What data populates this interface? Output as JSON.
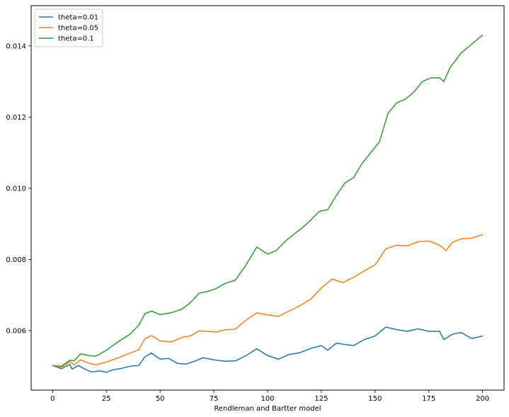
{
  "chart_data": {
    "type": "line",
    "xlabel": "Rendleman and Bartter model",
    "ylabel": "",
    "title": "",
    "xlim": [
      -10,
      210
    ],
    "ylim": [
      0.00433,
      0.01513
    ],
    "xticks": [
      0,
      25,
      50,
      75,
      100,
      125,
      150,
      175,
      200
    ],
    "yticks": [
      0.006,
      0.008,
      0.01,
      0.012,
      0.014
    ],
    "ytick_labels": [
      "0.006",
      "0.008",
      "0.010",
      "0.012",
      "0.014"
    ],
    "grid": false,
    "legend_placement": "top-left",
    "series": [
      {
        "name": "theta=0.01",
        "color": "#1f77b4",
        "points": [
          [
            0,
            0.00502
          ],
          [
            4,
            0.00493
          ],
          [
            8,
            0.00505
          ],
          [
            9,
            0.00492
          ],
          [
            12,
            0.00502
          ],
          [
            15,
            0.00492
          ],
          [
            18,
            0.00484
          ],
          [
            22,
            0.00487
          ],
          [
            25,
            0.00483
          ],
          [
            28,
            0.0049
          ],
          [
            32,
            0.00494
          ],
          [
            36,
            0.005
          ],
          [
            40,
            0.00502
          ],
          [
            43,
            0.00527
          ],
          [
            46,
            0.00537
          ],
          [
            50,
            0.0052
          ],
          [
            54,
            0.00522
          ],
          [
            58,
            0.00508
          ],
          [
            62,
            0.00506
          ],
          [
            66,
            0.00514
          ],
          [
            70,
            0.00524
          ],
          [
            75,
            0.00518
          ],
          [
            80,
            0.00514
          ],
          [
            85,
            0.00515
          ],
          [
            90,
            0.0053
          ],
          [
            95,
            0.00549
          ],
          [
            100,
            0.0053
          ],
          [
            105,
            0.0052
          ],
          [
            110,
            0.00533
          ],
          [
            115,
            0.00538
          ],
          [
            120,
            0.0055
          ],
          [
            125,
            0.00558
          ],
          [
            128,
            0.00545
          ],
          [
            132,
            0.00565
          ],
          [
            136,
            0.00561
          ],
          [
            140,
            0.00558
          ],
          [
            145,
            0.00575
          ],
          [
            150,
            0.00585
          ],
          [
            155,
            0.0061
          ],
          [
            160,
            0.00603
          ],
          [
            165,
            0.00598
          ],
          [
            170,
            0.00605
          ],
          [
            175,
            0.00598
          ],
          [
            180,
            0.00598
          ],
          [
            182,
            0.00575
          ],
          [
            186,
            0.0059
          ],
          [
            190,
            0.00595
          ],
          [
            195,
            0.00578
          ],
          [
            200,
            0.00585
          ]
        ]
      },
      {
        "name": "theta=0.05",
        "color": "#ff7f0e",
        "points": [
          [
            0,
            0.00502
          ],
          [
            4,
            0.00497
          ],
          [
            8,
            0.00513
          ],
          [
            10,
            0.00504
          ],
          [
            13,
            0.00518
          ],
          [
            17,
            0.00508
          ],
          [
            20,
            0.00504
          ],
          [
            25,
            0.00512
          ],
          [
            28,
            0.00518
          ],
          [
            32,
            0.00527
          ],
          [
            36,
            0.00537
          ],
          [
            40,
            0.00546
          ],
          [
            43,
            0.00578
          ],
          [
            46,
            0.00586
          ],
          [
            50,
            0.00571
          ],
          [
            55,
            0.00568
          ],
          [
            60,
            0.00581
          ],
          [
            64,
            0.00585
          ],
          [
            68,
            0.00599
          ],
          [
            72,
            0.00598
          ],
          [
            76,
            0.00596
          ],
          [
            80,
            0.00602
          ],
          [
            85,
            0.00604
          ],
          [
            90,
            0.0063
          ],
          [
            95,
            0.0065
          ],
          [
            100,
            0.00644
          ],
          [
            105,
            0.0064
          ],
          [
            110,
            0.00655
          ],
          [
            115,
            0.0067
          ],
          [
            120,
            0.00688
          ],
          [
            125,
            0.0072
          ],
          [
            130,
            0.00745
          ],
          [
            135,
            0.00735
          ],
          [
            140,
            0.0075
          ],
          [
            145,
            0.00768
          ],
          [
            150,
            0.00785
          ],
          [
            155,
            0.0083
          ],
          [
            160,
            0.0084
          ],
          [
            165,
            0.00838
          ],
          [
            170,
            0.0085
          ],
          [
            175,
            0.00852
          ],
          [
            180,
            0.0084
          ],
          [
            183,
            0.00825
          ],
          [
            186,
            0.00848
          ],
          [
            190,
            0.00858
          ],
          [
            195,
            0.0086
          ],
          [
            200,
            0.0087
          ]
        ]
      },
      {
        "name": "theta=0.1",
        "color": "#2ca02c",
        "points": [
          [
            0,
            0.00502
          ],
          [
            4,
            0.005
          ],
          [
            8,
            0.00517
          ],
          [
            10,
            0.00515
          ],
          [
            13,
            0.00535
          ],
          [
            17,
            0.0053
          ],
          [
            20,
            0.00528
          ],
          [
            25,
            0.00545
          ],
          [
            28,
            0.00558
          ],
          [
            32,
            0.00575
          ],
          [
            36,
            0.0059
          ],
          [
            40,
            0.00615
          ],
          [
            43,
            0.00648
          ],
          [
            46,
            0.00655
          ],
          [
            50,
            0.00645
          ],
          [
            55,
            0.0065
          ],
          [
            60,
            0.0066
          ],
          [
            64,
            0.00678
          ],
          [
            68,
            0.00705
          ],
          [
            72,
            0.0071
          ],
          [
            76,
            0.00718
          ],
          [
            80,
            0.00732
          ],
          [
            85,
            0.00742
          ],
          [
            90,
            0.00785
          ],
          [
            95,
            0.00835
          ],
          [
            100,
            0.00815
          ],
          [
            104,
            0.00825
          ],
          [
            108,
            0.0085
          ],
          [
            112,
            0.0087
          ],
          [
            116,
            0.00888
          ],
          [
            120,
            0.0091
          ],
          [
            124,
            0.00935
          ],
          [
            128,
            0.0094
          ],
          [
            132,
            0.0098
          ],
          [
            136,
            0.01015
          ],
          [
            140,
            0.0103
          ],
          [
            144,
            0.0107
          ],
          [
            148,
            0.011
          ],
          [
            152,
            0.0113
          ],
          [
            156,
            0.0121
          ],
          [
            160,
            0.0124
          ],
          [
            164,
            0.0125
          ],
          [
            168,
            0.0127
          ],
          [
            172,
            0.013
          ],
          [
            176,
            0.0131
          ],
          [
            180,
            0.0131
          ],
          [
            182,
            0.013
          ],
          [
            185,
            0.0134
          ],
          [
            190,
            0.0138
          ],
          [
            195,
            0.01405
          ],
          [
            200,
            0.0143
          ]
        ]
      }
    ]
  }
}
